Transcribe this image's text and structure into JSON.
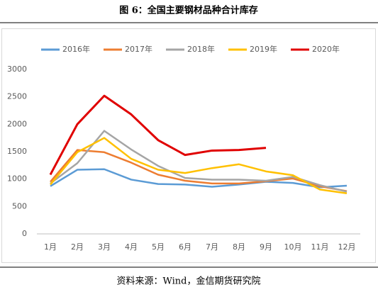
{
  "chart_data": {
    "type": "line",
    "title": "图 6：全国主要钢材品种合计库存",
    "source": "资料来源：Wind，金信期货研究院",
    "categories": [
      "1月",
      "2月",
      "3月",
      "4月",
      "5月",
      "6月",
      "7月",
      "8月",
      "9月",
      "10月",
      "11月",
      "12月"
    ],
    "series": [
      {
        "name": "2016年",
        "color": "#5b9bd5",
        "values": [
          870,
          1170,
          1180,
          990,
          910,
          900,
          860,
          900,
          950,
          930,
          850,
          880
        ]
      },
      {
        "name": "2017年",
        "color": "#ed7d31",
        "values": [
          950,
          1530,
          1490,
          1300,
          1080,
          970,
          920,
          920,
          960,
          1010,
          870,
          780
        ]
      },
      {
        "name": "2018年",
        "color": "#a5a5a5",
        "values": [
          920,
          1290,
          1880,
          1540,
          1240,
          1020,
          990,
          990,
          970,
          1040,
          890,
          770
        ]
      },
      {
        "name": "2019年",
        "color": "#ffc000",
        "values": [
          900,
          1490,
          1750,
          1370,
          1170,
          1110,
          1200,
          1270,
          1140,
          1070,
          810,
          740
        ]
      },
      {
        "name": "2020年",
        "color": "#e00000",
        "values": [
          1080,
          2000,
          2520,
          2180,
          1710,
          1440,
          1520,
          1530,
          1570,
          null,
          null,
          null
        ]
      }
    ],
    "ylim": [
      0,
      3000
    ],
    "yticks": [
      0,
      500,
      1000,
      1500,
      2000,
      2500,
      3000
    ],
    "grid": false,
    "legend": "top"
  }
}
